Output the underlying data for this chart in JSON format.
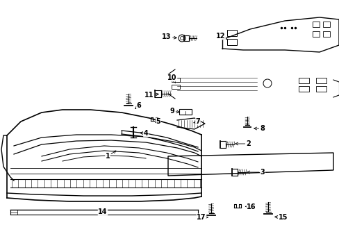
{
  "bg_color": "#ffffff",
  "fig_width": 4.89,
  "fig_height": 3.6,
  "dpi": 100,
  "line_color": "#000000",
  "label_fontsize": 7,
  "label_color": "#000000"
}
